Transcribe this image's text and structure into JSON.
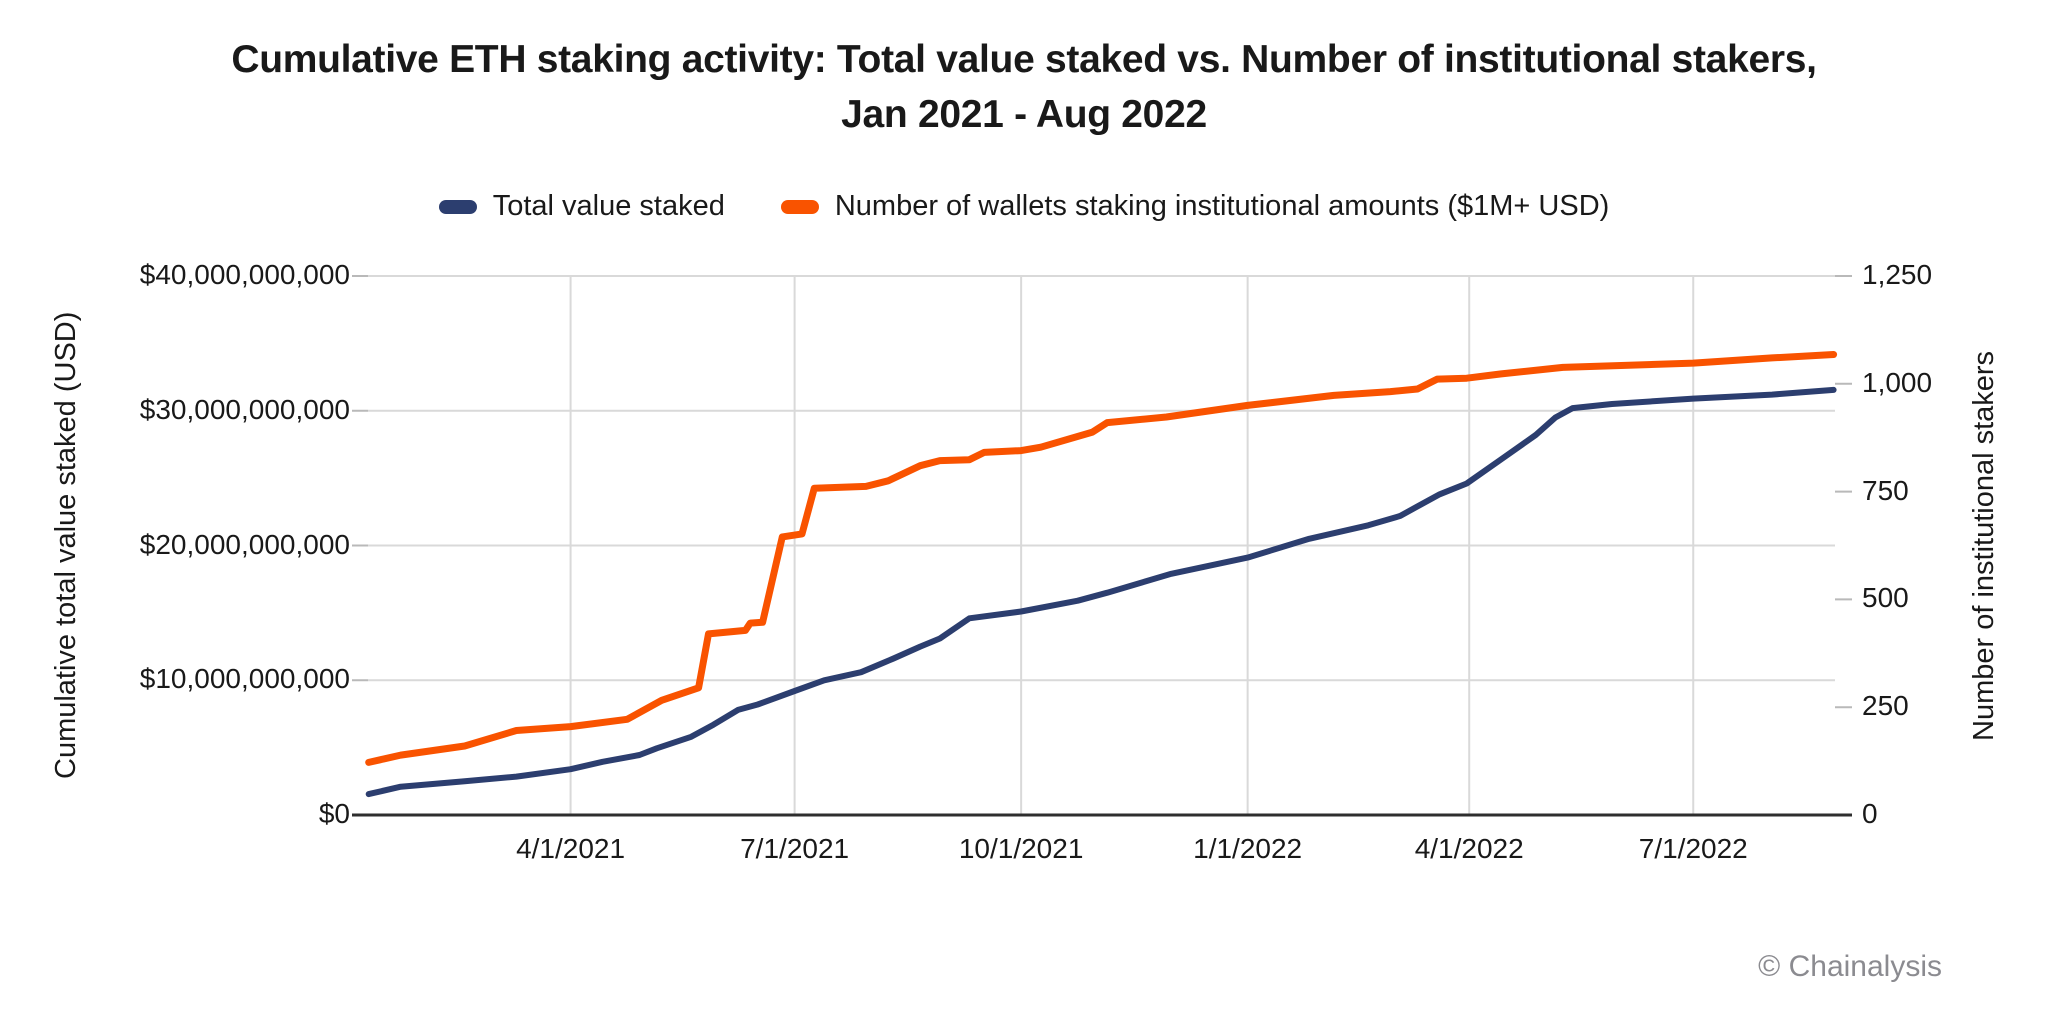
{
  "title": {
    "line1": "Cumulative ETH staking activity: Total value staked vs. Number of institutional stakers,",
    "line2": "Jan 2021 - Aug 2022"
  },
  "legend": {
    "items": [
      {
        "label": "Total value staked",
        "color": "#2C3E6F"
      },
      {
        "label": "Number of wallets staking institutional amounts ($1M+ USD)",
        "color": "#F95300"
      }
    ]
  },
  "footer": {
    "copyright": "© Chainalysis",
    "color": "#8B8B90"
  },
  "chart_data": {
    "type": "line",
    "title": "Cumulative ETH staking activity: Total value staked vs. Number of institutional stakers, Jan 2021 - Aug 2022",
    "grid": {
      "color": "#D9D9D9",
      "axis_color": "#2E2E2E",
      "tick_color": "#B9B9B9",
      "horizontal_gridlines": true,
      "vertical_gridlines": true
    },
    "x_axis": {
      "label": "",
      "range_dates": [
        "2021-01-09",
        "2022-08-27"
      ],
      "ticks": [
        {
          "label": "4/1/2021",
          "date": "2021-04-01"
        },
        {
          "label": "7/1/2021",
          "date": "2021-07-01"
        },
        {
          "label": "10/1/2021",
          "date": "2021-10-01"
        },
        {
          "label": "1/1/2022",
          "date": "2022-01-01"
        },
        {
          "label": "4/1/2022",
          "date": "2022-04-01"
        },
        {
          "label": "7/1/2022",
          "date": "2022-07-01"
        }
      ]
    },
    "y_left": {
      "label": "Cumulative total value staked (USD)",
      "max": 40000000000,
      "ticks": [
        {
          "label": "$0",
          "value": 0
        },
        {
          "label": "$10,000,000,000",
          "value": 10000000000
        },
        {
          "label": "$20,000,000,000",
          "value": 20000000000
        },
        {
          "label": "$30,000,000,000",
          "value": 30000000000
        },
        {
          "label": "$40,000,000,000",
          "value": 40000000000
        }
      ]
    },
    "y_right": {
      "label": "Number of institutional stakers",
      "max": 1250,
      "ticks": [
        {
          "label": "0",
          "value": 0
        },
        {
          "label": "250",
          "value": 250
        },
        {
          "label": "500",
          "value": 500
        },
        {
          "label": "750",
          "value": 750
        },
        {
          "label": "1,000",
          "value": 1000
        },
        {
          "label": "1,250",
          "value": 1250
        }
      ]
    },
    "series": [
      {
        "name": "Total value staked",
        "axis": "left",
        "color": "#2C3E6F",
        "points": [
          [
            "2021-01-09",
            1550000000
          ],
          [
            "2021-01-22",
            2100000000
          ],
          [
            "2021-02-17",
            2500000000
          ],
          [
            "2021-03-10",
            2850000000
          ],
          [
            "2021-04-01",
            3400000000
          ],
          [
            "2021-04-14",
            3950000000
          ],
          [
            "2021-04-29",
            4450000000
          ],
          [
            "2021-05-06",
            4950000000
          ],
          [
            "2021-05-20",
            5800000000
          ],
          [
            "2021-05-29",
            6700000000
          ],
          [
            "2021-06-08",
            7800000000
          ],
          [
            "2021-06-16",
            8200000000
          ],
          [
            "2021-07-01",
            9200000000
          ],
          [
            "2021-07-13",
            10000000000
          ],
          [
            "2021-07-28",
            10600000000
          ],
          [
            "2021-08-10",
            11600000000
          ],
          [
            "2021-08-21",
            12500000000
          ],
          [
            "2021-08-29",
            13100000000
          ],
          [
            "2021-09-10",
            14600000000
          ],
          [
            "2021-10-01",
            15100000000
          ],
          [
            "2021-10-24",
            15900000000
          ],
          [
            "2021-11-05",
            16500000000
          ],
          [
            "2021-12-01",
            17900000000
          ],
          [
            "2022-01-01",
            19100000000
          ],
          [
            "2022-01-26",
            20500000000
          ],
          [
            "2022-02-19",
            21500000000
          ],
          [
            "2022-03-04",
            22200000000
          ],
          [
            "2022-03-11",
            22900000000
          ],
          [
            "2022-03-20",
            23800000000
          ],
          [
            "2022-03-31",
            24600000000
          ],
          [
            "2022-04-14",
            26400000000
          ],
          [
            "2022-04-28",
            28200000000
          ],
          [
            "2022-05-06",
            29500000000
          ],
          [
            "2022-05-13",
            30200000000
          ],
          [
            "2022-05-29",
            30500000000
          ],
          [
            "2022-07-01",
            30900000000
          ],
          [
            "2022-08-02",
            31200000000
          ],
          [
            "2022-08-27",
            31550000000
          ]
        ]
      },
      {
        "name": "Number of wallets staking institutional amounts ($1M+ USD)",
        "axis": "right",
        "color": "#F95300",
        "points": [
          [
            "2021-01-09",
            122
          ],
          [
            "2021-01-22",
            139
          ],
          [
            "2021-02-17",
            160
          ],
          [
            "2021-03-10",
            196
          ],
          [
            "2021-04-01",
            205
          ],
          [
            "2021-04-24",
            222
          ],
          [
            "2021-05-08",
            266
          ],
          [
            "2021-05-23",
            295
          ],
          [
            "2021-05-27",
            420
          ],
          [
            "2021-06-11",
            428
          ],
          [
            "2021-06-13",
            445
          ],
          [
            "2021-06-18",
            447
          ],
          [
            "2021-06-26",
            645
          ],
          [
            "2021-07-04",
            652
          ],
          [
            "2021-07-09",
            758
          ],
          [
            "2021-07-30",
            762
          ],
          [
            "2021-08-08",
            775
          ],
          [
            "2021-08-21",
            810
          ],
          [
            "2021-08-29",
            822
          ],
          [
            "2021-09-10",
            824
          ],
          [
            "2021-09-16",
            841
          ],
          [
            "2021-10-01",
            845
          ],
          [
            "2021-10-09",
            853
          ],
          [
            "2021-10-30",
            888
          ],
          [
            "2021-11-05",
            910
          ],
          [
            "2021-11-29",
            923
          ],
          [
            "2022-01-01",
            950
          ],
          [
            "2022-02-05",
            973
          ],
          [
            "2022-02-28",
            982
          ],
          [
            "2022-03-11",
            988
          ],
          [
            "2022-03-19",
            1011
          ],
          [
            "2022-03-31",
            1013
          ],
          [
            "2022-04-14",
            1023
          ],
          [
            "2022-05-09",
            1038
          ],
          [
            "2022-07-01",
            1048
          ],
          [
            "2022-08-02",
            1060
          ],
          [
            "2022-08-27",
            1068
          ]
        ]
      }
    ]
  }
}
